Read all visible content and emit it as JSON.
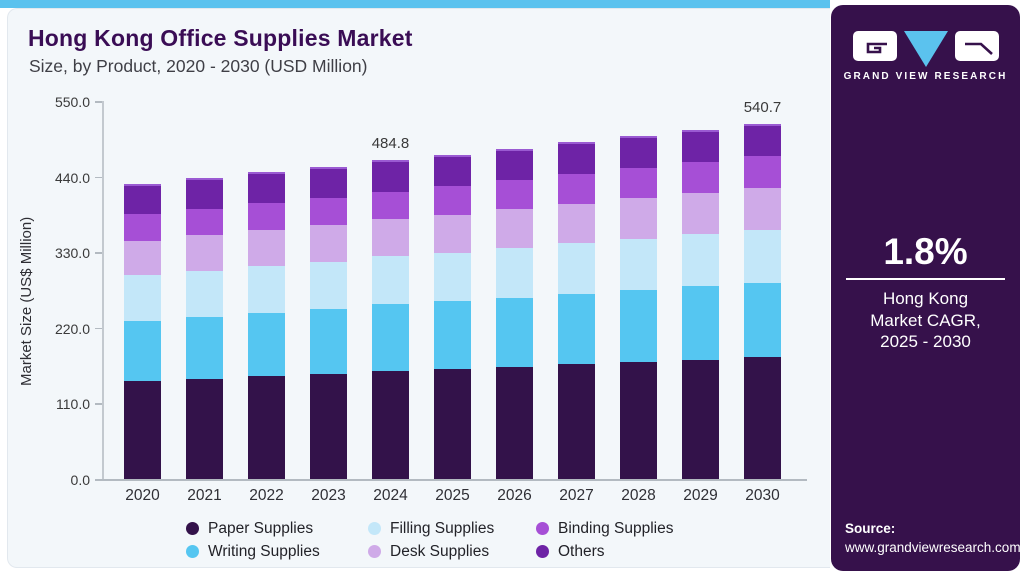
{
  "header": {
    "title": "Hong Kong Office Supplies Market",
    "subtitle": "Size, by Product, 2020 - 2030 (USD Million)"
  },
  "sidebar": {
    "brand": "GRAND VIEW RESEARCH",
    "cagr_value": "1.8%",
    "cagr_lines": [
      "Hong Kong",
      "Market CAGR,",
      "2025 - 2030"
    ],
    "source_label": "Source:",
    "source_url": "www.grandviewresearch.com"
  },
  "colors": {
    "accent_blue": "#5bc2ee",
    "sidebar_bg": "#36114b",
    "card_bg": "#f3f7fa",
    "title_text": "#3a0d55",
    "bar_top_cap": "#9a5ad2",
    "axis_text": "#3a3a3a"
  },
  "chart_data": {
    "type": "bar",
    "stacked": true,
    "title": "Hong Kong Office Supplies Market Size, by Product, 2020 - 2030 (USD Million)",
    "ylabel": "Market Size (US$ Million)",
    "ylim": [
      0,
      550
    ],
    "ytick_labels": [
      "0.0",
      "110.0",
      "220.0",
      "330.0",
      "440.0",
      "550.0"
    ],
    "grid": false,
    "legend_position": "bottom",
    "categories": [
      "2020",
      "2021",
      "2022",
      "2023",
      "2024",
      "2025",
      "2026",
      "2027",
      "2028",
      "2029",
      "2030"
    ],
    "series": [
      {
        "name": "Paper Supplies",
        "color": "#33124a",
        "values": [
          148.6,
          152.4,
          156.2,
          159.9,
          164.8,
          167.2,
          170.8,
          174.3,
          177.8,
          181.4,
          184.9
        ]
      },
      {
        "name": "Writing Supplies",
        "color": "#55c6f1",
        "values": [
          92.2,
          94.4,
          96.5,
          98.7,
          100.8,
          103.0,
          105.2,
          107.4,
          109.5,
          111.7,
          113.9
        ]
      },
      {
        "name": "Filling Supplies",
        "color": "#c3e7f9",
        "values": [
          69.1,
          70.1,
          71.1,
          72.0,
          73.0,
          74.3,
          75.6,
          76.8,
          78.1,
          79.4,
          80.7
        ]
      },
      {
        "name": "Desk Supplies",
        "color": "#cfaae8",
        "values": [
          52.9,
          53.8,
          54.7,
          55.5,
          56.4,
          57.7,
          58.9,
          60.2,
          61.5,
          62.7,
          64.0
        ]
      },
      {
        "name": "Binding Supplies",
        "color": "#a64fd6",
        "values": [
          40.2,
          40.6,
          41.1,
          41.5,
          41.9,
          42.9,
          43.9,
          44.9,
          45.9,
          46.9,
          47.9
        ]
      },
      {
        "name": "Others",
        "color": "#6e23a6",
        "values": [
          46.4,
          46.8,
          47.2,
          47.5,
          47.9,
          48.1,
          48.4,
          48.6,
          48.8,
          49.1,
          49.3
        ]
      }
    ],
    "bar_labels": [
      {
        "category": "2024",
        "value": "484.8"
      },
      {
        "category": "2030",
        "value": "540.7"
      }
    ]
  }
}
